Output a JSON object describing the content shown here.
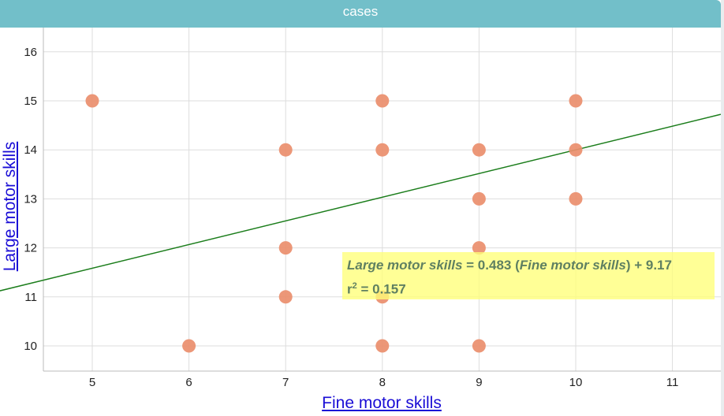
{
  "window": {
    "title": "cases"
  },
  "colors": {
    "header": "#72bfc9",
    "points": "#ea8e6d",
    "line": "#1b7d1b",
    "axis_link": "#1a0dd6",
    "equation_bg": "#ffff80"
  },
  "equation": {
    "y_name": "Large motor skills",
    "x_name": "Fine motor skills",
    "eq_text": " = 0.483 (",
    "tail_text": ") + 9.17",
    "r2_label": "r",
    "r2_sup": "2",
    "r2_value": " = 0.157"
  },
  "chart_data": {
    "type": "scatter",
    "title": "cases",
    "xlabel": "Fine motor skills",
    "ylabel": "Large motor skills",
    "xlim": [
      4.5,
      11.5
    ],
    "ylim": [
      9.5,
      16.5
    ],
    "xticks": [
      5,
      6,
      7,
      8,
      9,
      10,
      11
    ],
    "yticks": [
      10,
      11,
      12,
      13,
      14,
      15,
      16
    ],
    "grid": true,
    "points": [
      {
        "x": 5,
        "y": 15
      },
      {
        "x": 6,
        "y": 10
      },
      {
        "x": 7,
        "y": 14
      },
      {
        "x": 7,
        "y": 12
      },
      {
        "x": 7,
        "y": 11
      },
      {
        "x": 8,
        "y": 15
      },
      {
        "x": 8,
        "y": 14
      },
      {
        "x": 8,
        "y": 11
      },
      {
        "x": 8,
        "y": 10
      },
      {
        "x": 9,
        "y": 14
      },
      {
        "x": 9,
        "y": 13
      },
      {
        "x": 9,
        "y": 12
      },
      {
        "x": 9,
        "y": 10
      },
      {
        "x": 10,
        "y": 15
      },
      {
        "x": 10,
        "y": 14
      },
      {
        "x": 10,
        "y": 13
      }
    ],
    "regression": {
      "slope": 0.483,
      "intercept": 9.17,
      "r_squared": 0.157
    }
  }
}
